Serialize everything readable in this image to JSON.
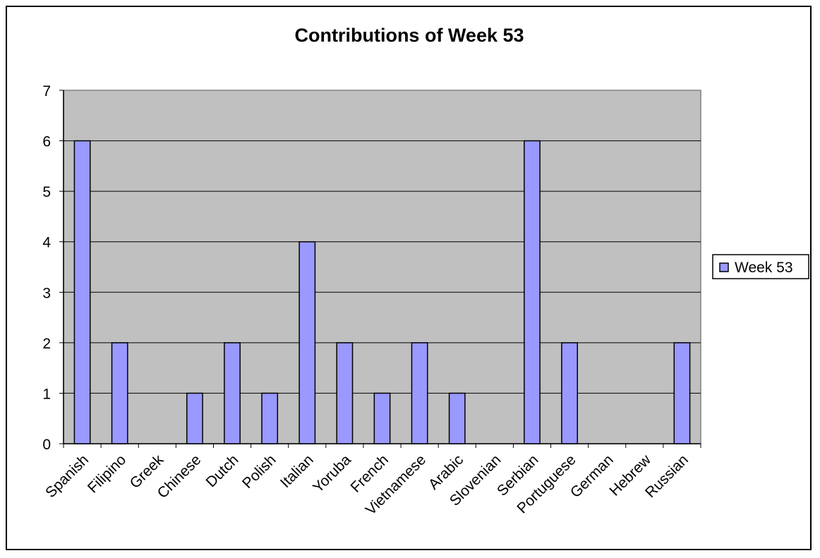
{
  "chart_data": {
    "type": "bar",
    "title": "Contributions of Week 53",
    "xlabel": "",
    "ylabel": "",
    "ylim": [
      0,
      7
    ],
    "yticks": [
      0,
      1,
      2,
      3,
      4,
      5,
      6,
      7
    ],
    "grid": true,
    "legend_position": "right",
    "categories": [
      "Spanish",
      "Filipino",
      "Greek",
      "Chinese",
      "Dutch",
      "Polish",
      "Italian",
      "Yoruba",
      "French",
      "Vietnamese",
      "Arabic",
      "Slovenian",
      "Serbian",
      "Portuguese",
      "German",
      "Hebrew",
      "Russian"
    ],
    "series": [
      {
        "name": "Week 53",
        "color": "#9999ff",
        "values": [
          6,
          2,
          0,
          1,
          2,
          1,
          4,
          2,
          1,
          2,
          1,
          0,
          6,
          2,
          0,
          0,
          2
        ]
      }
    ],
    "plot_background": "#c0c0c0"
  }
}
